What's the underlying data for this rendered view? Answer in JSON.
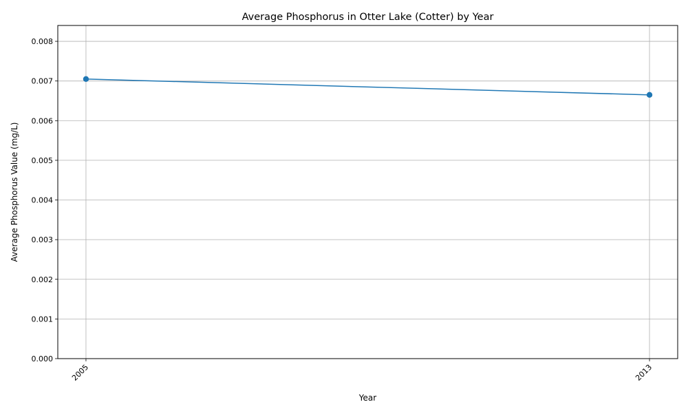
{
  "chart_data": {
    "type": "line",
    "title": "Average Phosphorus in Otter Lake (Cotter) by Year",
    "xlabel": "Year",
    "ylabel": "Average Phosphorus Value (mg/L)",
    "x": [
      2005,
      2013
    ],
    "x_tick_labels": [
      "2005",
      "2013"
    ],
    "series": [
      {
        "values": [
          0.00705,
          0.00665
        ],
        "color": "#1f77b4"
      }
    ],
    "ylim": [
      0,
      0.0084
    ],
    "xlim": [
      2004.6,
      2013.4
    ],
    "y_ticks": [
      0.0,
      0.001,
      0.002,
      0.003,
      0.004,
      0.005,
      0.006,
      0.007,
      0.008
    ],
    "y_tick_labels": [
      "0.000",
      "0.001",
      "0.002",
      "0.003",
      "0.004",
      "0.005",
      "0.006",
      "0.007",
      "0.008"
    ],
    "grid": true,
    "legend": "none"
  }
}
